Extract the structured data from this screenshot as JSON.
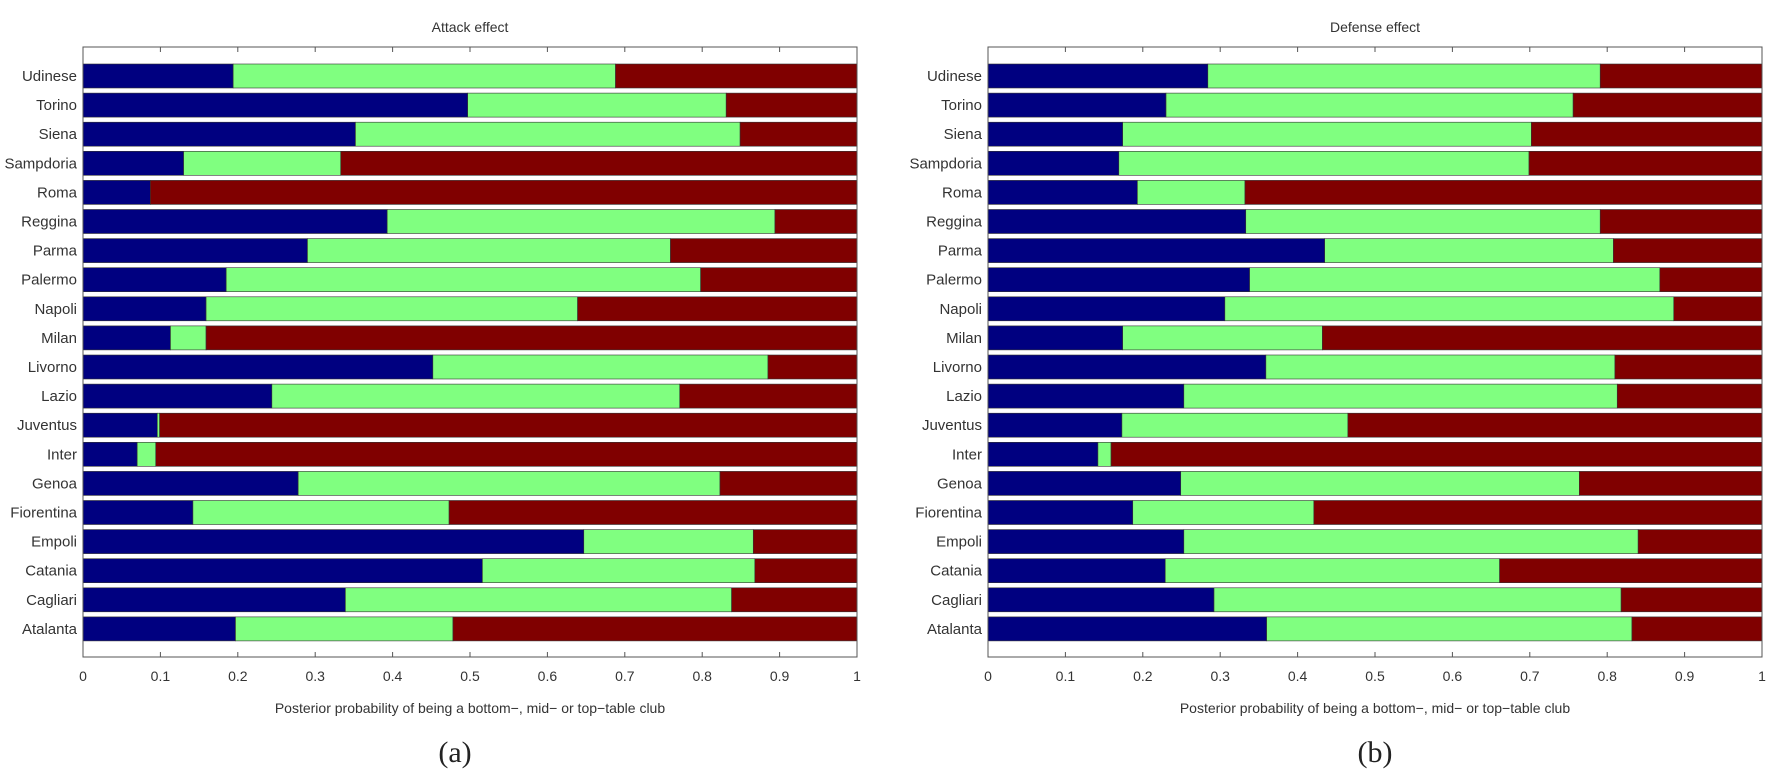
{
  "chart_data": [
    {
      "id": "a",
      "type": "bar",
      "orientation": "horizontal",
      "stacked": true,
      "title": "Attack effect",
      "xlabel": "Posterior probability of being a bottom−, mid− or top−table club",
      "ylabel": "",
      "caption": "(a)",
      "xlim": [
        0,
        1
      ],
      "xticks": [
        "0",
        "0.1",
        "0.2",
        "0.3",
        "0.4",
        "0.5",
        "0.6",
        "0.7",
        "0.8",
        "0.9",
        "1"
      ],
      "grid": false,
      "legend": "none",
      "categories": [
        "Udinese",
        "Torino",
        "Siena",
        "Sampdoria",
        "Roma",
        "Reggina",
        "Parma",
        "Palermo",
        "Napoli",
        "Milan",
        "Livorno",
        "Lazio",
        "Juventus",
        "Inter",
        "Genoa",
        "Fiorentina",
        "Empoli",
        "Catania",
        "Cagliari",
        "Atalanta"
      ],
      "series": [
        {
          "name": "bottom-table",
          "color": "#000080",
          "values": [
            0.194,
            0.497,
            0.352,
            0.13,
            0.087,
            0.393,
            0.29,
            0.185,
            0.159,
            0.113,
            0.452,
            0.244,
            0.096,
            0.07,
            0.278,
            0.142,
            0.647,
            0.516,
            0.339,
            0.197
          ]
        },
        {
          "name": "mid-table",
          "color": "#80ff80",
          "values": [
            0.494,
            0.334,
            0.497,
            0.203,
            0.0,
            0.501,
            0.469,
            0.613,
            0.48,
            0.046,
            0.433,
            0.527,
            0.003,
            0.024,
            0.545,
            0.331,
            0.219,
            0.352,
            0.499,
            0.281
          ]
        },
        {
          "name": "top-table",
          "color": "#800000",
          "values": [
            0.312,
            0.169,
            0.151,
            0.667,
            0.913,
            0.106,
            0.241,
            0.202,
            0.361,
            0.841,
            0.115,
            0.229,
            0.901,
            0.906,
            0.177,
            0.527,
            0.134,
            0.132,
            0.162,
            0.522
          ]
        }
      ]
    },
    {
      "id": "b",
      "type": "bar",
      "orientation": "horizontal",
      "stacked": true,
      "title": "Defense effect",
      "xlabel": "Posterior probability of being a bottom−, mid− or top−table club",
      "ylabel": "",
      "caption": "(b)",
      "xlim": [
        0,
        1
      ],
      "xticks": [
        "0",
        "0.1",
        "0.2",
        "0.3",
        "0.4",
        "0.5",
        "0.6",
        "0.7",
        "0.8",
        "0.9",
        "1"
      ],
      "grid": false,
      "legend": "none",
      "categories": [
        "Udinese",
        "Torino",
        "Siena",
        "Sampdoria",
        "Roma",
        "Reggina",
        "Parma",
        "Palermo",
        "Napoli",
        "Milan",
        "Livorno",
        "Lazio",
        "Juventus",
        "Inter",
        "Genoa",
        "Fiorentina",
        "Empoli",
        "Catania",
        "Cagliari",
        "Atalanta"
      ],
      "series": [
        {
          "name": "bottom-table",
          "color": "#000080",
          "values": [
            0.284,
            0.23,
            0.174,
            0.169,
            0.193,
            0.333,
            0.435,
            0.338,
            0.306,
            0.174,
            0.359,
            0.253,
            0.173,
            0.142,
            0.249,
            0.187,
            0.253,
            0.229,
            0.292,
            0.36
          ]
        },
        {
          "name": "mid-table",
          "color": "#80ff80",
          "values": [
            0.507,
            0.526,
            0.528,
            0.53,
            0.139,
            0.458,
            0.373,
            0.53,
            0.58,
            0.258,
            0.451,
            0.56,
            0.292,
            0.017,
            0.515,
            0.234,
            0.587,
            0.432,
            0.526,
            0.472
          ]
        },
        {
          "name": "top-table",
          "color": "#800000",
          "values": [
            0.209,
            0.244,
            0.298,
            0.301,
            0.668,
            0.209,
            0.192,
            0.132,
            0.114,
            0.568,
            0.19,
            0.187,
            0.535,
            0.841,
            0.236,
            0.579,
            0.16,
            0.339,
            0.182,
            0.168
          ]
        }
      ]
    }
  ]
}
